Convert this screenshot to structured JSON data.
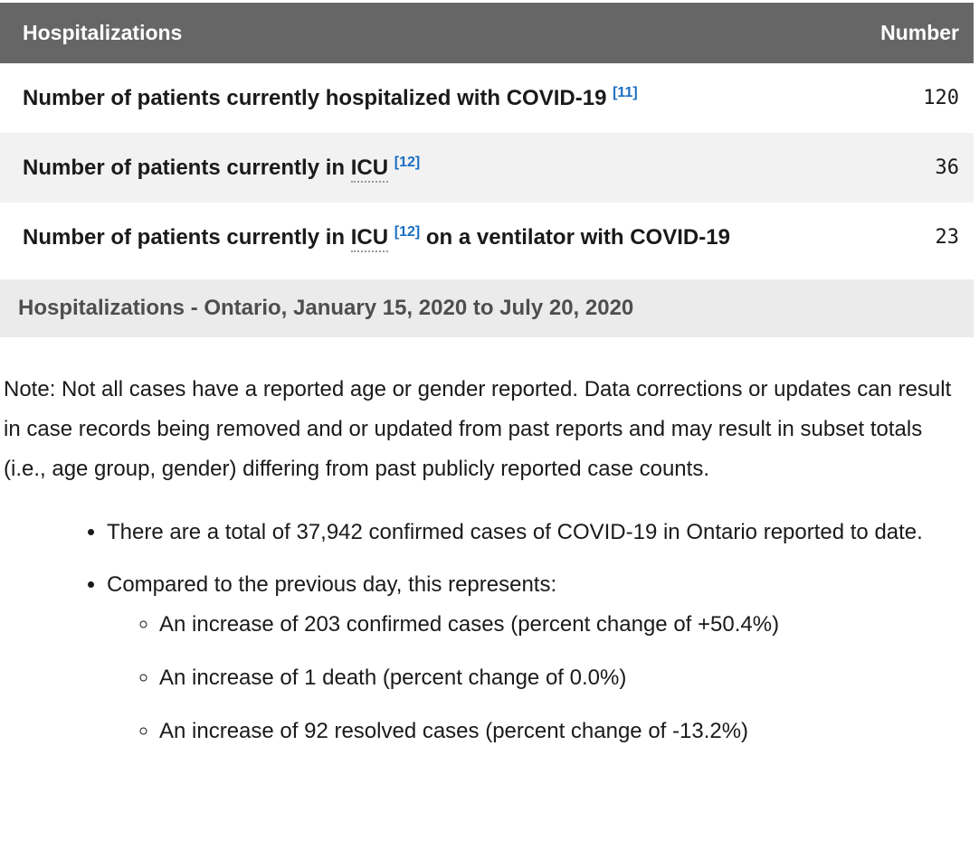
{
  "colors": {
    "table_header_bg": "#666666",
    "table_header_text": "#ffffff",
    "row_alt_bg": "#f2f2f2",
    "section_header_bg": "#ebebeb",
    "section_header_text": "#4e4e4e",
    "footnote_link_blue": "#1b6ec2",
    "abbr_dotted_underline": "#999999",
    "body_text": "#1a1a1a"
  },
  "table": {
    "columns": {
      "label": "Hospitalizations",
      "value": "Number"
    },
    "rows": [
      {
        "text": "Number of patients currently hospitalized with COVID-19",
        "footnote": "[11]",
        "value": "120"
      },
      {
        "text": "Number of patients currently in",
        "abbr": "ICU",
        "footnote": "[12]",
        "value": "36"
      },
      {
        "text": "Number of patients currently in",
        "abbr": "ICU",
        "footnote": "[12]",
        "text_after": "on a ventilator with COVID-19",
        "value": "23"
      }
    ]
  },
  "section_header": {
    "title": "Hospitalizations - Ontario, January 15, 2020 to July 20, 2020"
  },
  "note": {
    "text": "Note: Not all cases have a reported age or gender reported. Data corrections or updates can result in case records being removed and or updated from past reports and may result in subset totals (i.e., age group, gender) differing from past publicly reported case counts."
  },
  "summary": {
    "bullets": [
      {
        "text": "There are a total of 37,942 confirmed cases of COVID-19 in Ontario reported to date."
      },
      {
        "text": "Compared to the previous day, this represents:",
        "children": [
          {
            "text": "An increase of 203 confirmed cases (percent change of +50.4%)"
          },
          {
            "text": "An increase of 1 death (percent change of 0.0%)"
          },
          {
            "text": "An increase of 92 resolved cases (percent change of -13.2%)"
          }
        ]
      }
    ]
  }
}
